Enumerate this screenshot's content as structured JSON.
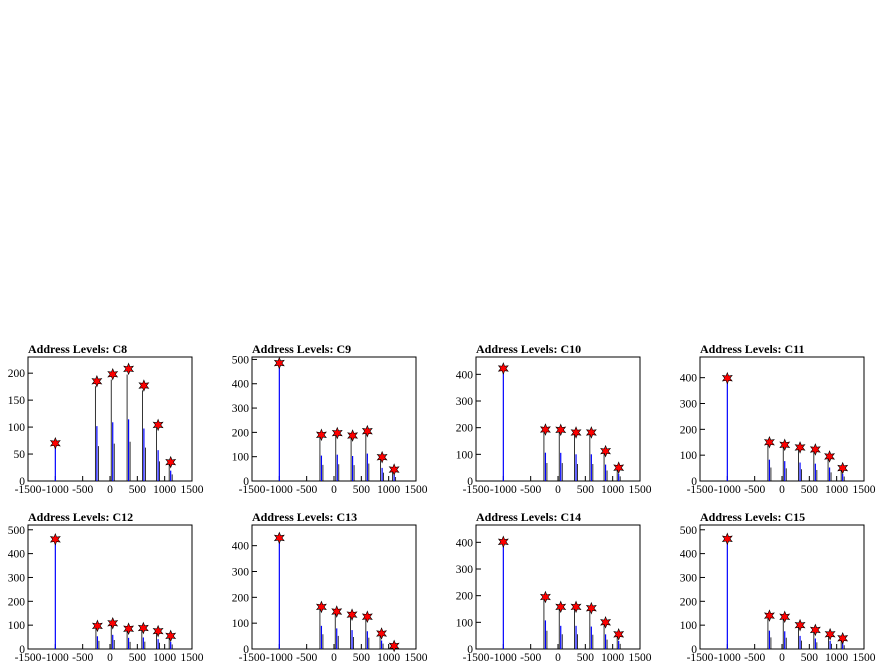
{
  "chart_data": [
    {
      "type": "bar",
      "title": "Address Levels: C8",
      "xlabel": "",
      "ylabel": "",
      "xlim": [
        -1500,
        1500
      ],
      "ylim": [
        0,
        230
      ],
      "xticks": [
        "-1500",
        "-1000",
        "-500",
        "0",
        "500",
        "1000",
        "1500"
      ],
      "yticks": [
        "0",
        "50",
        "100",
        "150",
        "200"
      ],
      "marker_label": "★",
      "peaks": [
        {
          "x": -1000,
          "y": 70
        },
        {
          "x": -240,
          "y": 185
        },
        {
          "x": 50,
          "y": 198
        },
        {
          "x": 340,
          "y": 208
        },
        {
          "x": 620,
          "y": 177
        },
        {
          "x": 880,
          "y": 104
        },
        {
          "x": 1110,
          "y": 35
        }
      ]
    },
    {
      "type": "bar",
      "title": "Address Levels: C9",
      "xlabel": "",
      "ylabel": "",
      "xlim": [
        -1500,
        1500
      ],
      "ylim": [
        0,
        510
      ],
      "xticks": [
        "-1500",
        "-1000",
        "-500",
        "0",
        "500",
        "1000",
        "1500"
      ],
      "yticks": [
        "0",
        "100",
        "200",
        "300",
        "400",
        "500"
      ],
      "marker_label": "★",
      "peaks": [
        {
          "x": -1000,
          "y": 485
        },
        {
          "x": -230,
          "y": 190
        },
        {
          "x": 60,
          "y": 197
        },
        {
          "x": 340,
          "y": 187
        },
        {
          "x": 610,
          "y": 205
        },
        {
          "x": 880,
          "y": 98
        },
        {
          "x": 1100,
          "y": 47
        }
      ]
    },
    {
      "type": "bar",
      "title": "Address Levels: C10",
      "xlabel": "",
      "ylabel": "",
      "xlim": [
        -1500,
        1500
      ],
      "ylim": [
        0,
        465
      ],
      "xticks": [
        "-1500",
        "-1000",
        "-500",
        "0",
        "500",
        "1000",
        "1500"
      ],
      "yticks": [
        "0",
        "100",
        "200",
        "300",
        "400"
      ],
      "marker_label": "★",
      "peaks": [
        {
          "x": -1000,
          "y": 422
        },
        {
          "x": -230,
          "y": 193
        },
        {
          "x": 50,
          "y": 192
        },
        {
          "x": 330,
          "y": 182
        },
        {
          "x": 610,
          "y": 182
        },
        {
          "x": 870,
          "y": 112
        },
        {
          "x": 1110,
          "y": 50
        }
      ]
    },
    {
      "type": "bar",
      "title": "Address Levels: C11",
      "xlabel": "",
      "ylabel": "",
      "xlim": [
        -1500,
        1500
      ],
      "ylim": [
        0,
        480
      ],
      "xticks": [
        "-1500",
        "-1000",
        "-500",
        "0",
        "500",
        "1000",
        "1500"
      ],
      "yticks": [
        "0",
        "100",
        "200",
        "300",
        "400"
      ],
      "marker_label": "★",
      "peaks": [
        {
          "x": -1000,
          "y": 398
        },
        {
          "x": -230,
          "y": 150
        },
        {
          "x": 50,
          "y": 140
        },
        {
          "x": 330,
          "y": 130
        },
        {
          "x": 610,
          "y": 122
        },
        {
          "x": 870,
          "y": 95
        },
        {
          "x": 1110,
          "y": 50
        }
      ]
    },
    {
      "type": "bar",
      "title": "Address Levels: C12",
      "xlabel": "",
      "ylabel": "",
      "xlim": [
        -1500,
        1500
      ],
      "ylim": [
        0,
        520
      ],
      "xticks": [
        "-1500",
        "-1000",
        "-500",
        "0",
        "500",
        "1000",
        "1500"
      ],
      "yticks": [
        "0",
        "100",
        "200",
        "300",
        "400",
        "500"
      ],
      "marker_label": "★",
      "peaks": [
        {
          "x": -1000,
          "y": 460
        },
        {
          "x": -230,
          "y": 97
        },
        {
          "x": 50,
          "y": 108
        },
        {
          "x": 340,
          "y": 85
        },
        {
          "x": 610,
          "y": 88
        },
        {
          "x": 880,
          "y": 75
        },
        {
          "x": 1110,
          "y": 55
        }
      ]
    },
    {
      "type": "bar",
      "title": "Address Levels: C13",
      "xlabel": "",
      "ylabel": "",
      "xlim": [
        -1500,
        1500
      ],
      "ylim": [
        0,
        480
      ],
      "xticks": [
        "-1500",
        "-1000",
        "-500",
        "0",
        "500",
        "1000",
        "1500"
      ],
      "yticks": [
        "0",
        "100",
        "200",
        "300",
        "400"
      ],
      "marker_label": "★",
      "peaks": [
        {
          "x": -1000,
          "y": 430
        },
        {
          "x": -230,
          "y": 163
        },
        {
          "x": 50,
          "y": 145
        },
        {
          "x": 330,
          "y": 133
        },
        {
          "x": 610,
          "y": 125
        },
        {
          "x": 870,
          "y": 60
        },
        {
          "x": 1100,
          "y": 12
        }
      ]
    },
    {
      "type": "bar",
      "title": "Address Levels: C14",
      "xlabel": "",
      "ylabel": "",
      "xlim": [
        -1500,
        1500
      ],
      "ylim": [
        0,
        465
      ],
      "xticks": [
        "-1500",
        "-1000",
        "-500",
        "0",
        "500",
        "1000",
        "1500"
      ],
      "yticks": [
        "0",
        "100",
        "200",
        "300",
        "400"
      ],
      "marker_label": "★",
      "peaks": [
        {
          "x": -1000,
          "y": 402
        },
        {
          "x": -230,
          "y": 195
        },
        {
          "x": 50,
          "y": 158
        },
        {
          "x": 330,
          "y": 158
        },
        {
          "x": 610,
          "y": 153
        },
        {
          "x": 870,
          "y": 100
        },
        {
          "x": 1110,
          "y": 55
        }
      ]
    },
    {
      "type": "bar",
      "title": "Address Levels: C15",
      "xlabel": "",
      "ylabel": "",
      "xlim": [
        -1500,
        1500
      ],
      "ylim": [
        0,
        520
      ],
      "xticks": [
        "-1500",
        "-1000",
        "-500",
        "0",
        "500",
        "1000",
        "1500"
      ],
      "yticks": [
        "0",
        "100",
        "200",
        "300",
        "400",
        "500"
      ],
      "marker_label": "★",
      "peaks": [
        {
          "x": -1000,
          "y": 462
        },
        {
          "x": -230,
          "y": 140
        },
        {
          "x": 50,
          "y": 135
        },
        {
          "x": 330,
          "y": 100
        },
        {
          "x": 610,
          "y": 80
        },
        {
          "x": 880,
          "y": 62
        },
        {
          "x": 1110,
          "y": 45
        }
      ]
    }
  ],
  "colors": {
    "histogram": "#0000ff",
    "marker": "#ff0000",
    "marker_outline": "#000000",
    "frame": "#000000"
  }
}
